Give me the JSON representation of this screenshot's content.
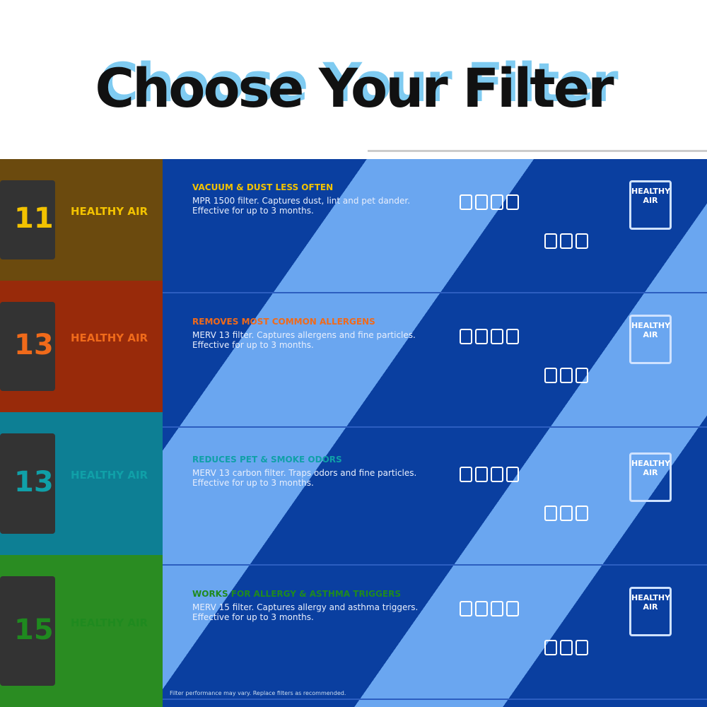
{
  "header": {
    "title": "Choose Your Filter"
  },
  "rows": [
    {
      "heading": "VACUUM & DUST LESS OFTEN",
      "heading_color": "#f2c200",
      "band_color": "#6b4a0e",
      "card_label": "HEALTHY AIR",
      "card_num": "11",
      "text": "MPR 1500 filter. Captures dust, lint and pet dander. Effective for up to 3 months."
    },
    {
      "heading": "REMOVES MOST COMMON ALLERGENS",
      "heading_color": "#f06a1a",
      "band_color": "#982a0a",
      "card_label": "HEALTHY AIR",
      "card_num": "13",
      "text": "MERV 13 filter. Captures allergens and fine particles. Effective for up to 3 months."
    },
    {
      "heading": "REDUCES PET & SMOKE ODORS",
      "heading_color": "#10a0a8",
      "band_color": "#0d7f94",
      "card_label": "HEALTHY AIR",
      "card_num": "13",
      "text": "MERV 13 carbon filter. Traps odors and fine particles. Effective for up to 3 months."
    },
    {
      "heading": "WORKS FOR ALLERGY & ASTHMA TRIGGERS",
      "heading_color": "#1f8a1f",
      "band_color": "#2a8c22",
      "card_label": "HEALTHY AIR",
      "card_num": "15",
      "text": "MERV 15 filter. Captures allergy and asthma triggers. Effective for up to 3 months."
    }
  ],
  "footnote": "Filter performance may vary. Replace filters as recommended."
}
